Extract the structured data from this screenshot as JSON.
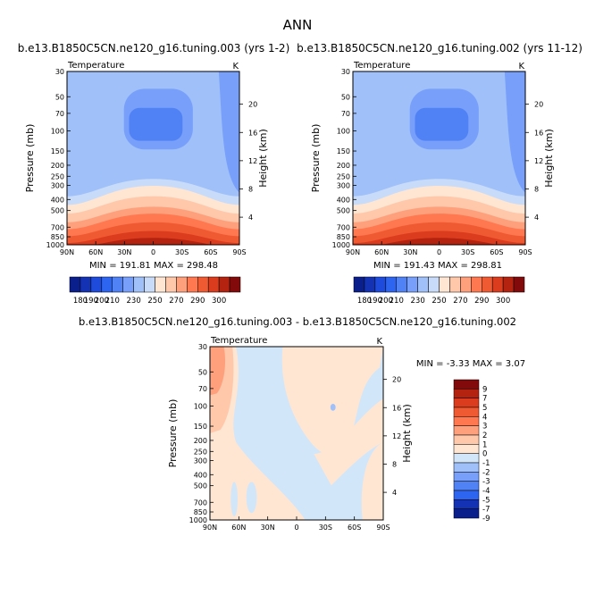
{
  "main_title": "ANN",
  "chart_data": [
    {
      "type": "contour",
      "title": "b.e13.B1850C5CN.ne120_g16.tuning.003 (yrs 1-2)",
      "field": "Temperature",
      "units": "K",
      "ylabel_left": "Pressure (mb)",
      "ylabel_right": "Height (km)",
      "xticks": [
        "90N",
        "60N",
        "30N",
        "0",
        "30S",
        "60S",
        "90S"
      ],
      "pressure_ticks": [
        30,
        50,
        70,
        100,
        150,
        200,
        250,
        300,
        400,
        500,
        700,
        850,
        1000
      ],
      "height_ticks": [
        4,
        8,
        12,
        16,
        20
      ],
      "min_max": "MIN = 191.81   MAX = 298.48",
      "colorbar_labels": [
        "180",
        "190",
        "200",
        "210",
        "230",
        "250",
        "270",
        "290",
        "300"
      ]
    },
    {
      "type": "contour",
      "title": "b.e13.B1850C5CN.ne120_g16.tuning.002 (yrs 11-12)",
      "field": "Temperature",
      "units": "K",
      "ylabel_left": "Pressure (mb)",
      "ylabel_right": "Height (km)",
      "xticks": [
        "90N",
        "60N",
        "30N",
        "0",
        "30S",
        "60S",
        "90S"
      ],
      "pressure_ticks": [
        30,
        50,
        70,
        100,
        150,
        200,
        250,
        300,
        400,
        500,
        700,
        850,
        1000
      ],
      "height_ticks": [
        4,
        8,
        12,
        16,
        20
      ],
      "min_max": "MIN = 191.43   MAX = 298.81",
      "colorbar_labels": [
        "180",
        "190",
        "200",
        "210",
        "230",
        "250",
        "270",
        "290",
        "300"
      ]
    },
    {
      "type": "contour",
      "title": "b.e13.B1850C5CN.ne120_g16.tuning.003 - b.e13.B1850C5CN.ne120_g16.tuning.002",
      "field": "Temperature",
      "units": "K",
      "ylabel_left": "Pressure (mb)",
      "ylabel_right": "Height (km)",
      "xticks": [
        "90N",
        "60N",
        "30N",
        "0",
        "30S",
        "60S",
        "90S"
      ],
      "pressure_ticks": [
        30,
        50,
        70,
        100,
        150,
        200,
        250,
        300,
        400,
        500,
        700,
        850,
        1000
      ],
      "height_ticks": [
        4,
        8,
        12,
        16,
        20
      ],
      "min_max": "MIN =   -3.33   MAX =    3.07",
      "colorbar_labels": [
        "9",
        "7",
        "5",
        "4",
        "3",
        "2",
        "1",
        "0",
        "-1",
        "-2",
        "-3",
        "-4",
        "-5",
        "-7",
        "-9"
      ]
    }
  ],
  "colors": {
    "abs_scale": [
      "#0a1e8c",
      "#1432b4",
      "#1e4bdc",
      "#2d64f0",
      "#5082f5",
      "#78a0fa",
      "#a0c0fa",
      "#c8dcfa",
      "#ffe6d2",
      "#ffc8aa",
      "#ffa07d",
      "#ff7850",
      "#f05a32",
      "#dc3c1e",
      "#b4230f",
      "#820a0a"
    ],
    "diff_scale": [
      "#820a0a",
      "#b4230f",
      "#dc3c1e",
      "#f05a32",
      "#ff7850",
      "#ffa07d",
      "#ffc8aa",
      "#ffe6d2",
      "#d2e6fa",
      "#a0c0fa",
      "#78a0fa",
      "#5082f5",
      "#2d64f0",
      "#1432b4",
      "#0a1e8c"
    ]
  }
}
